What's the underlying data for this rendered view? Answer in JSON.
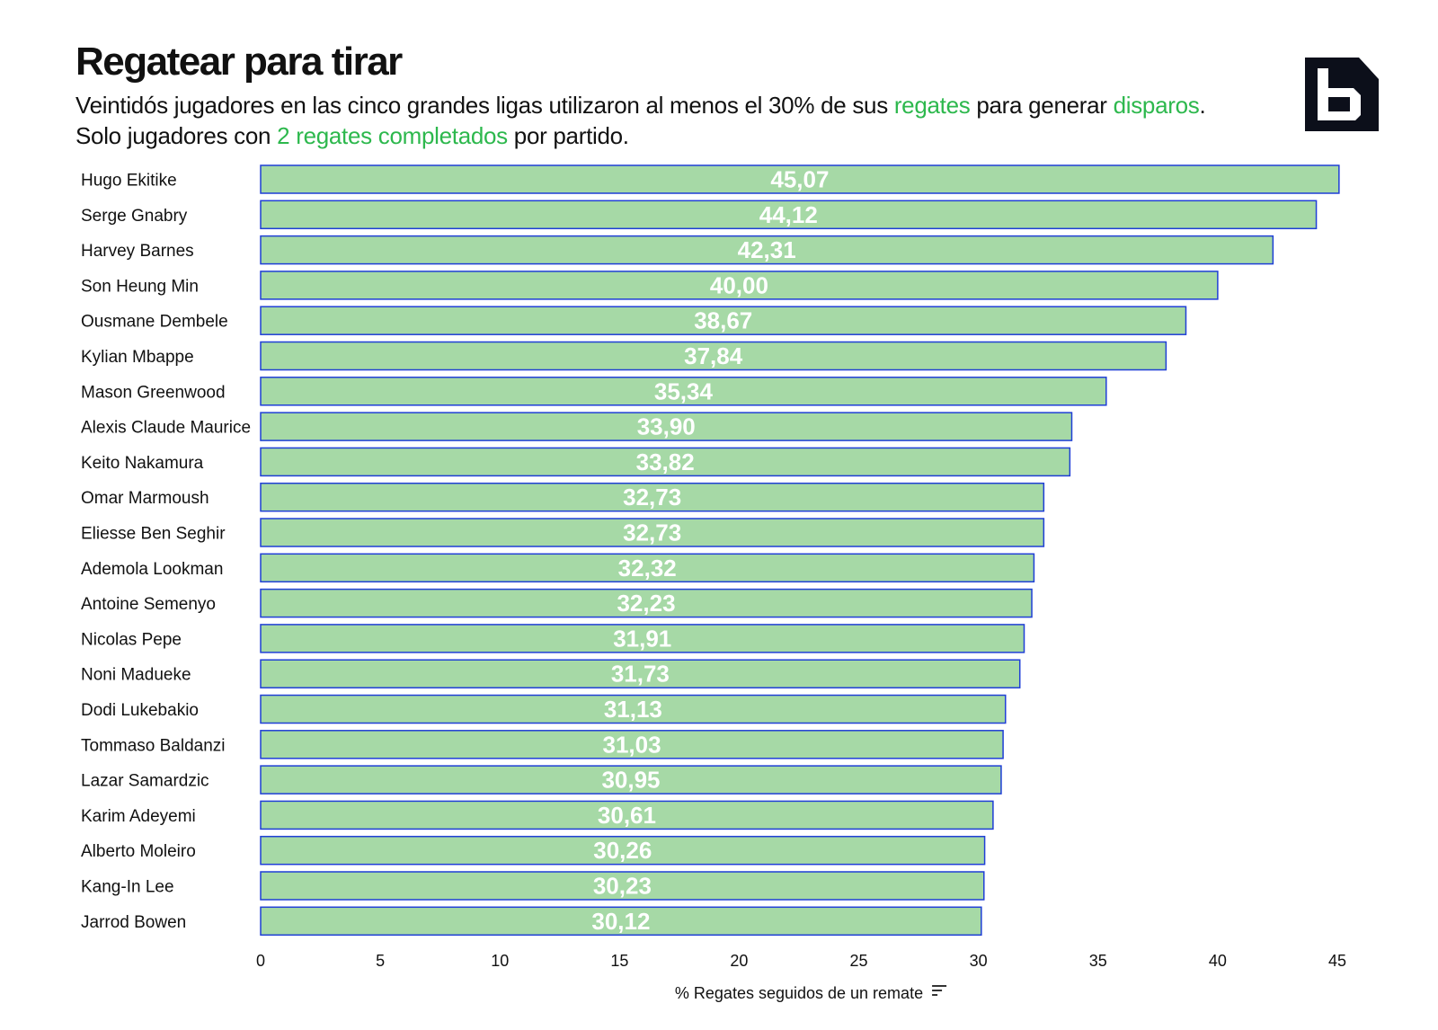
{
  "header": {
    "title": "Regatear para tirar",
    "subtitle_parts": [
      {
        "text": "Veintidós jugadores en las cinco grandes ligas utilizaron al menos el 30% de sus ",
        "highlight": false
      },
      {
        "text": "regates",
        "highlight": true
      },
      {
        "text": " para generar ",
        "highlight": false
      },
      {
        "text": "disparos",
        "highlight": true
      },
      {
        "text": ". Solo jugadores con ",
        "highlight": false
      },
      {
        "text": "2 regates completados",
        "highlight": true
      },
      {
        "text": " por partido.",
        "highlight": false
      }
    ]
  },
  "logo": {
    "icon": "brand-b-logo-icon"
  },
  "colors": {
    "bar_fill": "#a6d9a6",
    "bar_stroke": "#1f3fd6",
    "highlight_text": "#2db84d",
    "value_text": "#ffffff"
  },
  "chart_data": {
    "type": "bar",
    "orientation": "horizontal",
    "title": "",
    "xlabel": "% Regates seguidos de un remate",
    "xlabel_icon": "sort-icon",
    "ylabel": "",
    "xlim": [
      0,
      45
    ],
    "xticks": [
      0,
      5,
      10,
      15,
      20,
      25,
      30,
      35,
      40,
      45
    ],
    "grid": false,
    "categories": [
      "Hugo Ekitike",
      "Serge Gnabry",
      "Harvey Barnes",
      "Son Heung Min",
      "Ousmane Dembele",
      "Kylian Mbappe",
      "Mason Greenwood",
      "Alexis Claude Maurice",
      "Keito Nakamura",
      "Omar Marmoush",
      "Eliesse Ben Seghir",
      "Ademola Lookman",
      "Antoine Semenyo",
      "Nicolas Pepe",
      "Noni Madueke",
      "Dodi Lukebakio",
      "Tommaso Baldanzi",
      "Lazar Samardzic",
      "Karim Adeyemi",
      "Alberto Moleiro",
      "Kang-In Lee",
      "Jarrod Bowen"
    ],
    "values": [
      45.07,
      44.12,
      42.31,
      40.0,
      38.67,
      37.84,
      35.34,
      33.9,
      33.82,
      32.73,
      32.73,
      32.32,
      32.23,
      31.91,
      31.73,
      31.13,
      31.03,
      30.95,
      30.61,
      30.26,
      30.23,
      30.12
    ],
    "value_labels": [
      "45,07",
      "44,12",
      "42,31",
      "40,00",
      "38,67",
      "37,84",
      "35,34",
      "33,90",
      "33,82",
      "32,73",
      "32,73",
      "32,32",
      "32,23",
      "31,91",
      "31,73",
      "31,13",
      "31,03",
      "30,95",
      "30,61",
      "30,26",
      "30,23",
      "30,12"
    ]
  }
}
